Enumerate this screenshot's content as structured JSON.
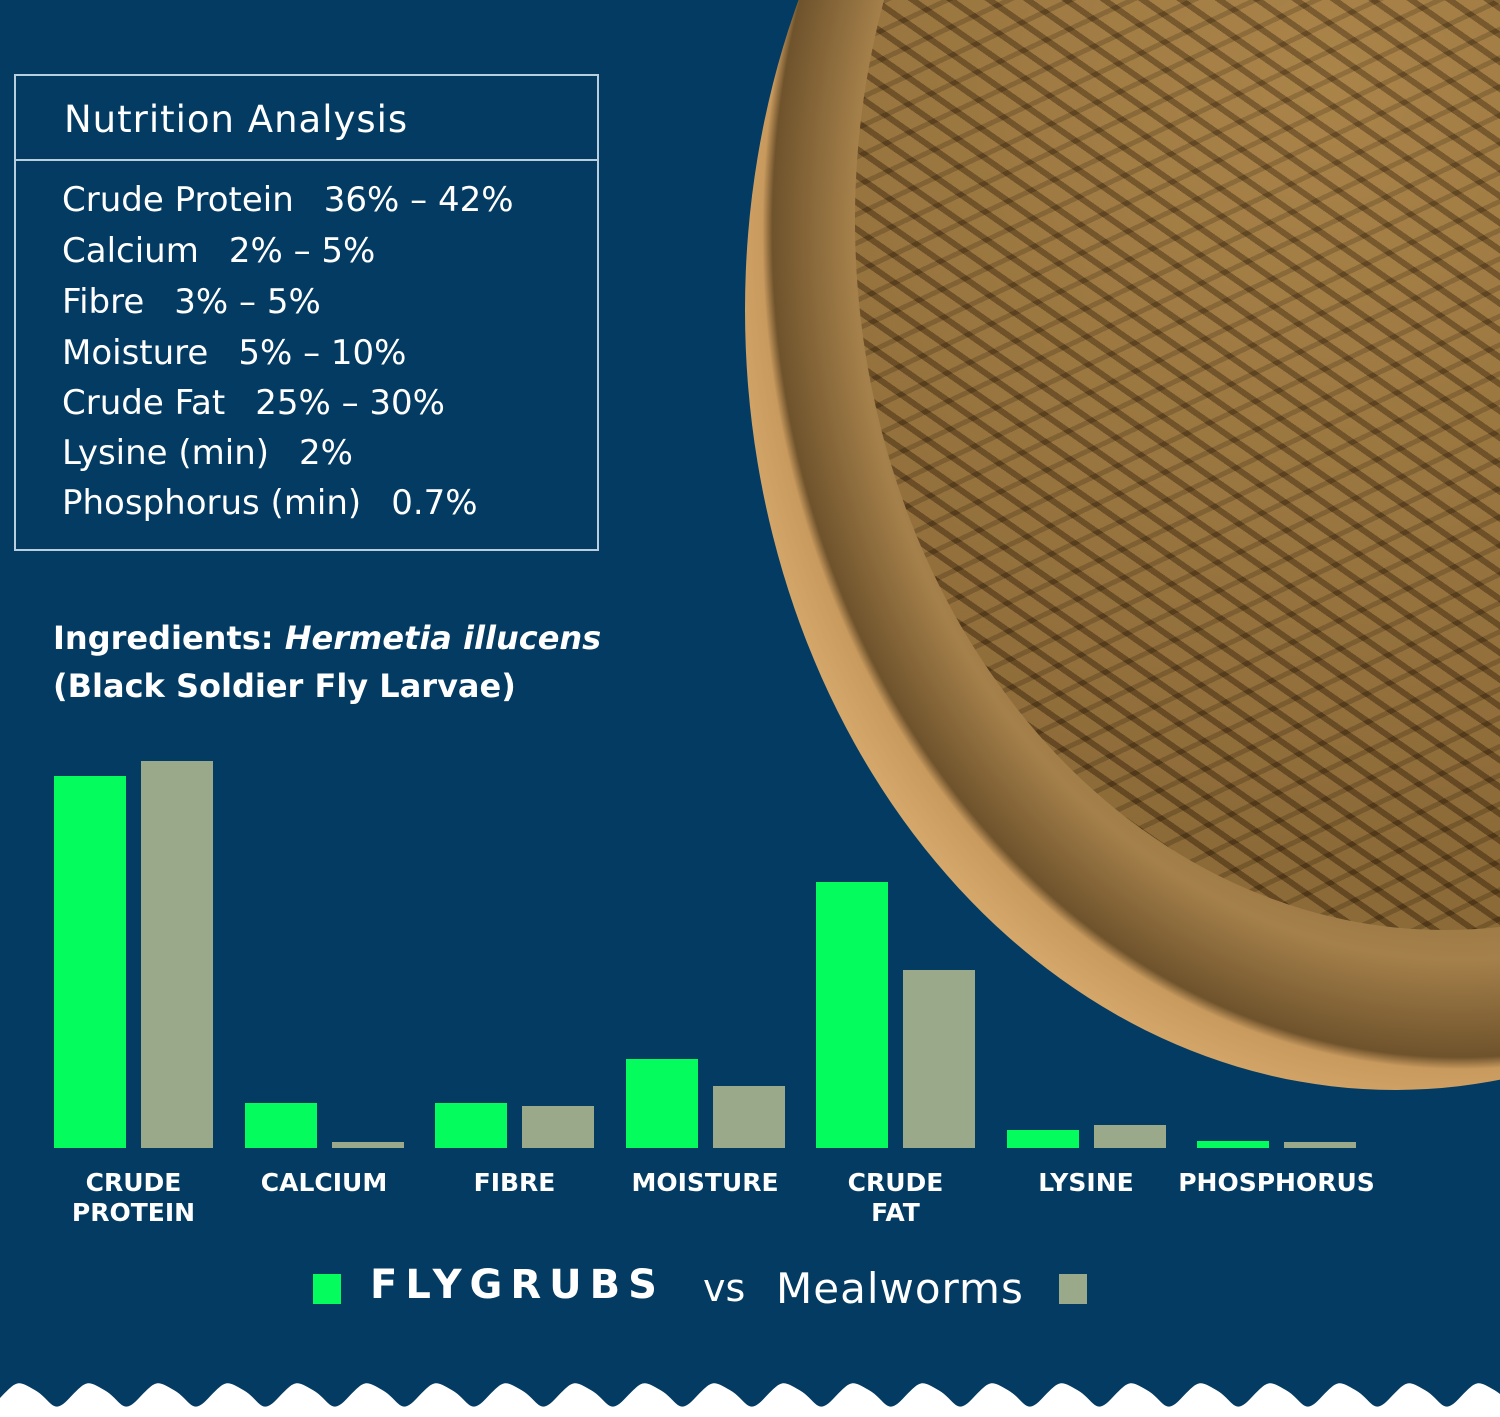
{
  "nutrition_analysis": {
    "title": "Nutrition Analysis",
    "rows": [
      {
        "label": "Crude Protein",
        "value": "36% – 42%"
      },
      {
        "label": "Calcium",
        "value": "2% – 5%"
      },
      {
        "label": "Fibre",
        "value": "3% – 5%"
      },
      {
        "label": "Moisture",
        "value": "5% – 10%"
      },
      {
        "label": "Crude Fat",
        "value": "25% – 30%"
      },
      {
        "label": "Lysine (min)",
        "value": "2%"
      },
      {
        "label": "Phosphorus (min)",
        "value": "0.7%"
      }
    ]
  },
  "ingredients": {
    "prefix": "Ingredients: ",
    "species": "Hermetia illucens",
    "common_name": "(Black Soldier Fly Larvae)"
  },
  "legend": {
    "brand": "FLYGRUBS",
    "vs": "vs",
    "comparison": "Mealworms"
  },
  "colors": {
    "background": "#033b62",
    "flygrubs": "#04fd5c",
    "mealworms": "#9aa98a",
    "box_border": "#b9cfdf"
  },
  "image": {
    "description": "wooden bowl filled with dried black soldier fly larvae"
  },
  "chart_data": {
    "type": "bar",
    "title": "",
    "xlabel": "",
    "ylabel": "",
    "grid": false,
    "legend_position": "bottom",
    "categories": [
      "CRUDE PROTEIN",
      "CALCIUM",
      "FIBRE",
      "MOISTURE",
      "CRUDE FAT",
      "LYSINE",
      "PHOSPHORUS"
    ],
    "category_lines": [
      [
        "CRUDE",
        "PROTEIN"
      ],
      [
        "CALCIUM"
      ],
      [
        "FIBRE"
      ],
      [
        "MOISTURE"
      ],
      [
        "CRUDE",
        "FAT"
      ],
      [
        "LYSINE"
      ],
      [
        "PHOSPHORUS"
      ]
    ],
    "series": [
      {
        "name": "FLYGRUBS",
        "color": "#04fd5c",
        "values": [
          39,
          4.7,
          4.7,
          9.3,
          27.9,
          1.9,
          0.7
        ]
      },
      {
        "name": "Mealworms",
        "color": "#9aa98a",
        "values": [
          40.6,
          0.6,
          4.4,
          6.5,
          18.7,
          2.4,
          0.6
        ]
      }
    ],
    "ylim": [
      0,
      42
    ],
    "axis_ticks": "none"
  }
}
